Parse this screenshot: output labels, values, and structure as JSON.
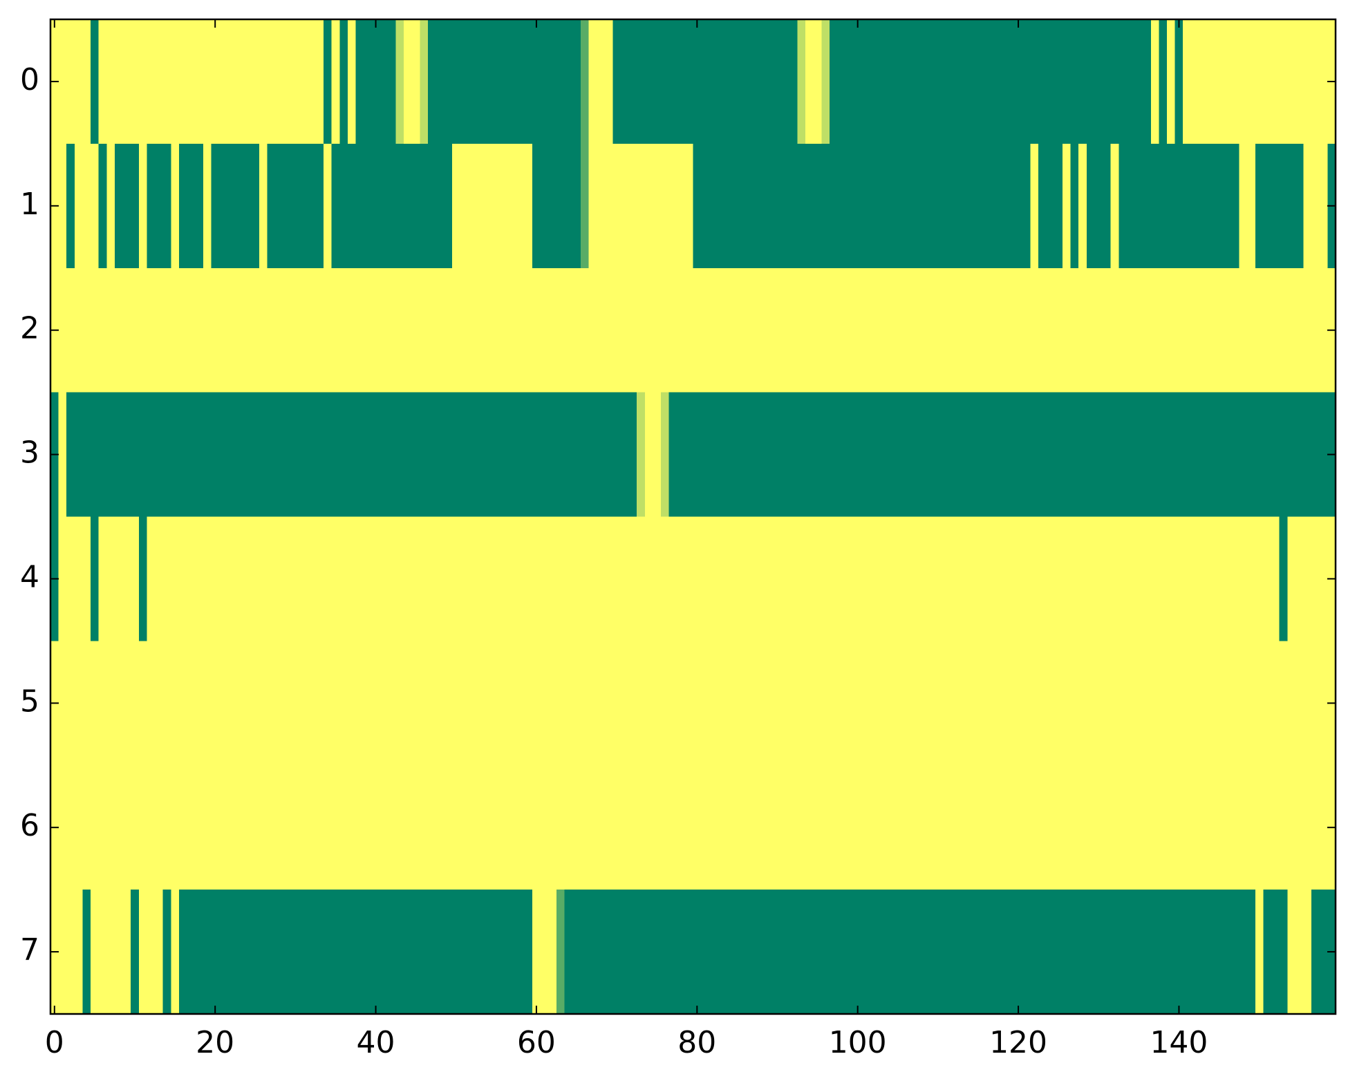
{
  "chart_data": {
    "type": "heatmap",
    "colormap": [
      "#008066",
      "#ffff66"
    ],
    "clim": [
      0,
      1
    ],
    "xlim": [
      -0.5,
      159.5
    ],
    "xticks": [
      0,
      20,
      40,
      60,
      80,
      100,
      120,
      140
    ],
    "ylim": [
      7.5,
      -0.5
    ],
    "yticks": [
      0,
      1,
      2,
      3,
      4,
      5,
      6,
      7
    ],
    "values": [
      [
        1,
        1,
        1,
        1,
        1,
        0,
        1,
        1,
        1,
        1,
        1,
        1,
        1,
        1,
        1,
        1,
        1,
        1,
        1,
        1,
        1,
        1,
        1,
        1,
        1,
        1,
        1,
        1,
        1,
        1,
        1,
        1,
        1,
        1,
        0,
        1,
        0,
        1,
        0,
        0,
        0,
        0,
        0,
        0.75,
        1,
        1,
        0.75,
        0,
        0,
        0,
        0,
        0,
        0,
        0,
        0,
        0,
        0,
        0,
        0,
        0,
        0,
        0,
        0,
        0,
        0,
        0,
        0.35,
        1,
        1,
        1,
        0,
        0,
        0,
        0,
        0,
        0,
        0,
        0,
        0,
        0,
        0,
        0,
        0,
        0,
        0,
        0,
        0,
        0,
        0,
        0,
        0,
        0,
        0,
        0.75,
        1,
        1,
        0.75,
        0,
        0,
        0,
        0,
        0,
        0,
        0,
        0,
        0,
        0,
        0,
        0,
        0,
        0,
        0,
        0,
        0,
        0,
        0,
        0,
        0,
        0,
        0,
        0,
        0,
        0,
        0,
        0,
        0,
        0,
        0,
        0,
        0,
        0,
        0,
        0,
        0,
        0,
        0,
        0,
        1,
        0,
        1,
        0,
        1,
        1,
        1,
        1,
        1,
        1,
        1,
        1,
        1,
        1,
        1,
        1,
        1,
        1,
        1,
        1,
        1,
        1,
        1
      ],
      [
        1,
        1,
        0,
        1,
        1,
        1,
        0,
        1,
        0,
        0,
        0,
        1,
        0,
        0,
        0,
        1,
        0,
        0,
        0,
        1,
        0,
        0,
        0,
        0,
        0,
        0,
        1,
        0,
        0,
        0,
        0,
        0,
        0,
        0,
        1,
        0,
        0,
        0,
        0,
        0,
        0,
        0,
        0,
        0,
        0,
        0,
        0,
        0,
        0,
        0,
        1,
        1,
        1,
        1,
        1,
        1,
        1,
        1,
        1,
        1,
        0,
        0,
        0,
        0,
        0,
        0,
        0.35,
        1,
        1,
        1,
        1,
        1,
        1,
        1,
        1,
        1,
        1,
        1,
        1,
        1,
        0,
        0,
        0,
        0,
        0,
        0,
        0,
        0,
        0,
        0,
        0,
        0,
        0,
        0,
        0,
        0,
        0,
        0,
        0,
        0,
        0,
        0,
        0,
        0,
        0,
        0,
        0,
        0,
        0,
        0,
        0,
        0,
        0,
        0,
        0,
        0,
        0,
        0,
        0,
        0,
        0,
        0,
        1,
        0,
        0,
        0,
        1,
        0,
        1,
        0,
        0,
        0,
        1,
        0,
        0,
        0,
        0,
        0,
        0,
        0,
        0,
        0,
        0,
        0,
        0,
        0,
        0,
        0,
        1,
        1,
        0,
        0,
        0,
        0,
        0,
        0,
        1,
        1,
        1,
        0
      ],
      [
        1,
        1,
        1,
        1,
        1,
        1,
        1,
        1,
        1,
        1,
        1,
        1,
        1,
        1,
        1,
        1,
        1,
        1,
        1,
        1,
        1,
        1,
        1,
        1,
        1,
        1,
        1,
        1,
        1,
        1,
        1,
        1,
        1,
        1,
        1,
        1,
        1,
        1,
        1,
        1,
        1,
        1,
        1,
        1,
        1,
        1,
        1,
        1,
        1,
        1,
        1,
        1,
        1,
        1,
        1,
        1,
        1,
        1,
        1,
        1,
        1,
        1,
        1,
        1,
        1,
        1,
        1,
        1,
        1,
        1,
        1,
        1,
        1,
        1,
        1,
        1,
        1,
        1,
        1,
        1,
        1,
        1,
        1,
        1,
        1,
        1,
        1,
        1,
        1,
        1,
        1,
        1,
        1,
        1,
        1,
        1,
        1,
        1,
        1,
        1,
        1,
        1,
        1,
        1,
        1,
        1,
        1,
        1,
        1,
        1,
        1,
        1,
        1,
        1,
        1,
        1,
        1,
        1,
        1,
        1,
        1,
        1,
        1,
        1,
        1,
        1,
        1,
        1,
        1,
        1,
        1,
        1,
        1,
        1,
        1,
        1,
        1,
        1,
        1,
        1,
        1,
        1,
        1,
        1,
        1,
        1,
        1,
        1,
        1,
        1,
        1,
        1,
        1,
        1,
        1,
        1,
        1,
        1,
        1,
        1
      ],
      [
        0,
        1,
        0,
        0,
        0,
        0,
        0,
        0,
        0,
        0,
        0,
        0,
        0,
        0,
        0,
        0,
        0,
        0,
        0,
        0,
        0,
        0,
        0,
        0,
        0,
        0,
        0,
        0,
        0,
        0,
        0,
        0,
        0,
        0,
        0,
        0,
        0,
        0,
        0,
        0,
        0,
        0,
        0,
        0,
        0,
        0,
        0,
        0,
        0,
        0,
        0,
        0,
        0,
        0,
        0,
        0,
        0,
        0,
        0,
        0,
        0,
        0,
        0,
        0,
        0,
        0,
        0,
        0,
        0,
        0,
        0,
        0,
        0,
        0.75,
        1,
        1,
        0.75,
        0,
        0,
        0,
        0,
        0,
        0,
        0,
        0,
        0,
        0,
        0,
        0,
        0,
        0,
        0,
        0,
        0,
        0,
        0,
        0,
        0,
        0,
        0,
        0,
        0,
        0,
        0,
        0,
        0,
        0,
        0,
        0,
        0,
        0,
        0,
        0,
        0,
        0,
        0,
        0,
        0,
        0,
        0,
        0,
        0,
        0,
        0,
        0,
        0,
        0,
        0,
        0,
        0,
        0,
        0,
        0,
        0,
        0,
        0,
        0,
        0,
        0,
        0,
        0,
        0,
        0,
        0,
        0,
        0,
        0,
        0,
        0,
        0,
        0,
        0,
        0,
        0,
        0,
        0,
        0,
        0,
        0,
        0
      ],
      [
        0,
        1,
        1,
        1,
        1,
        0,
        1,
        1,
        1,
        1,
        1,
        0,
        1,
        1,
        1,
        1,
        1,
        1,
        1,
        1,
        1,
        1,
        1,
        1,
        1,
        1,
        1,
        1,
        1,
        1,
        1,
        1,
        1,
        1,
        1,
        1,
        1,
        1,
        1,
        1,
        1,
        1,
        1,
        1,
        1,
        1,
        1,
        1,
        1,
        1,
        1,
        1,
        1,
        1,
        1,
        1,
        1,
        1,
        1,
        1,
        1,
        1,
        1,
        1,
        1,
        1,
        1,
        1,
        1,
        1,
        1,
        1,
        1,
        1,
        1,
        1,
        1,
        1,
        1,
        1,
        1,
        1,
        1,
        1,
        1,
        1,
        1,
        1,
        1,
        1,
        1,
        1,
        1,
        1,
        1,
        1,
        1,
        1,
        1,
        1,
        1,
        1,
        1,
        1,
        1,
        1,
        1,
        1,
        1,
        1,
        1,
        1,
        1,
        1,
        1,
        1,
        1,
        1,
        1,
        1,
        1,
        1,
        1,
        1,
        1,
        1,
        1,
        1,
        1,
        1,
        1,
        1,
        1,
        1,
        1,
        1,
        1,
        1,
        1,
        1,
        1,
        1,
        1,
        1,
        1,
        1,
        1,
        1,
        1,
        1,
        1,
        1,
        1,
        0,
        1,
        1,
        1,
        1,
        1,
        1
      ],
      [
        1,
        1,
        1,
        1,
        1,
        1,
        1,
        1,
        1,
        1,
        1,
        1,
        1,
        1,
        1,
        1,
        1,
        1,
        1,
        1,
        1,
        1,
        1,
        1,
        1,
        1,
        1,
        1,
        1,
        1,
        1,
        1,
        1,
        1,
        1,
        1,
        1,
        1,
        1,
        1,
        1,
        1,
        1,
        1,
        1,
        1,
        1,
        1,
        1,
        1,
        1,
        1,
        1,
        1,
        1,
        1,
        1,
        1,
        1,
        1,
        1,
        1,
        1,
        1,
        1,
        1,
        1,
        1,
        1,
        1,
        1,
        1,
        1,
        1,
        1,
        1,
        1,
        1,
        1,
        1,
        1,
        1,
        1,
        1,
        1,
        1,
        1,
        1,
        1,
        1,
        1,
        1,
        1,
        1,
        1,
        1,
        1,
        1,
        1,
        1,
        1,
        1,
        1,
        1,
        1,
        1,
        1,
        1,
        1,
        1,
        1,
        1,
        1,
        1,
        1,
        1,
        1,
        1,
        1,
        1,
        1,
        1,
        1,
        1,
        1,
        1,
        1,
        1,
        1,
        1,
        1,
        1,
        1,
        1,
        1,
        1,
        1,
        1,
        1,
        1,
        1,
        1,
        1,
        1,
        1,
        1,
        1,
        1,
        1,
        1,
        1,
        1,
        1,
        1,
        1,
        1,
        1,
        1,
        1,
        1
      ],
      [
        1,
        1,
        1,
        1,
        1,
        1,
        1,
        1,
        1,
        1,
        1,
        1,
        1,
        1,
        1,
        1,
        1,
        1,
        1,
        1,
        1,
        1,
        1,
        1,
        1,
        1,
        1,
        1,
        1,
        1,
        1,
        1,
        1,
        1,
        1,
        1,
        1,
        1,
        1,
        1,
        1,
        1,
        1,
        1,
        1,
        1,
        1,
        1,
        1,
        1,
        1,
        1,
        1,
        1,
        1,
        1,
        1,
        1,
        1,
        1,
        1,
        1,
        1,
        1,
        1,
        1,
        1,
        1,
        1,
        1,
        1,
        1,
        1,
        1,
        1,
        1,
        1,
        1,
        1,
        1,
        1,
        1,
        1,
        1,
        1,
        1,
        1,
        1,
        1,
        1,
        1,
        1,
        1,
        1,
        1,
        1,
        1,
        1,
        1,
        1,
        1,
        1,
        1,
        1,
        1,
        1,
        1,
        1,
        1,
        1,
        1,
        1,
        1,
        1,
        1,
        1,
        1,
        1,
        1,
        1,
        1,
        1,
        1,
        1,
        1,
        1,
        1,
        1,
        1,
        1,
        1,
        1,
        1,
        1,
        1,
        1,
        1,
        1,
        1,
        1,
        1,
        1,
        1,
        1,
        1,
        1,
        1,
        1,
        1,
        1,
        1,
        1,
        1,
        1,
        1,
        1,
        1,
        1,
        1,
        1
      ],
      [
        1,
        1,
        1,
        1,
        0,
        1,
        1,
        1,
        1,
        1,
        0,
        1,
        1,
        1,
        0,
        1,
        0,
        0,
        0,
        0,
        0,
        0,
        0,
        0,
        0,
        0,
        0,
        0,
        0,
        0,
        0,
        0,
        0,
        0,
        0,
        0,
        0,
        0,
        0,
        0,
        0,
        0,
        0,
        0,
        0,
        0,
        0,
        0,
        0,
        0,
        0,
        0,
        0,
        0,
        0,
        0,
        0,
        0,
        0,
        0,
        1,
        1,
        1,
        0.35,
        0,
        0,
        0,
        0,
        0,
        0,
        0,
        0,
        0,
        0,
        0,
        0,
        0,
        0,
        0,
        0,
        0,
        0,
        0,
        0,
        0,
        0,
        0,
        0,
        0,
        0,
        0,
        0,
        0,
        0,
        0,
        0,
        0,
        0,
        0,
        0,
        0,
        0,
        0,
        0,
        0,
        0,
        0,
        0,
        0,
        0,
        0,
        0,
        0,
        0,
        0,
        0,
        0,
        0,
        0,
        0,
        0,
        0,
        0,
        0,
        0,
        0,
        0,
        0,
        0,
        0,
        0,
        0,
        0,
        0,
        0,
        0,
        0,
        0,
        0,
        0,
        0,
        0,
        0,
        0,
        0,
        0,
        0,
        0,
        0,
        0,
        1,
        0,
        0,
        0,
        1,
        1,
        1,
        0,
        0,
        0
      ]
    ]
  }
}
